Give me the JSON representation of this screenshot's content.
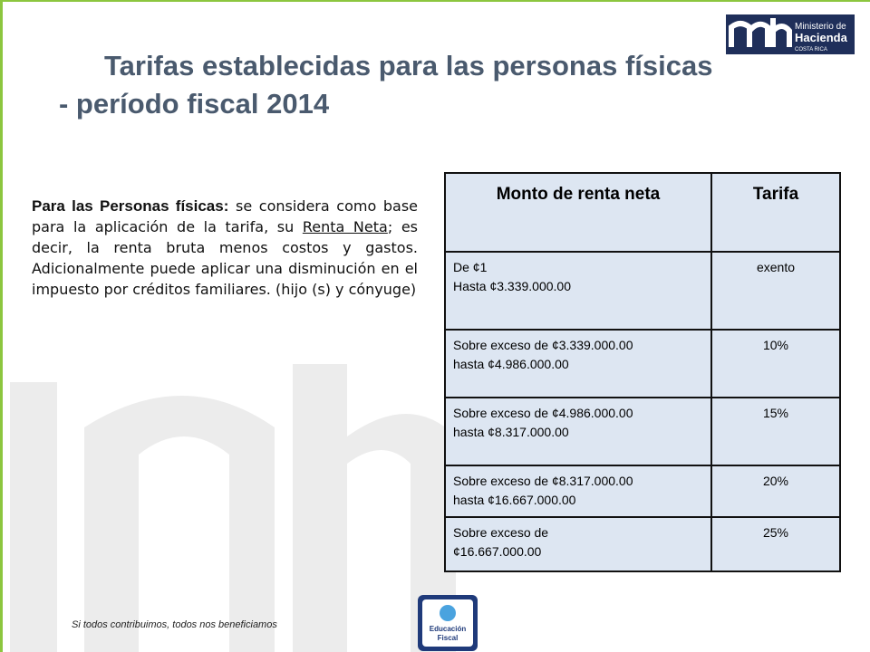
{
  "header": {
    "title": "Tarifas establecidas para las personas físicas - período fiscal 2014",
    "logo": {
      "line1": "Ministerio de",
      "line2": "Hacienda",
      "line3": "COSTA RICA"
    }
  },
  "intro": {
    "lead": "Para las Personas físicas:",
    "text1": " se considera como base para la aplicación de la tarifa, su ",
    "underlined": "Renta Neta",
    "text2": "; es decir, la renta bruta menos costos y gastos. Adicionalmente puede aplicar una disminución en el impuesto por créditos familiares. (hijo (s) y cónyuge)"
  },
  "table": {
    "headers": [
      "Monto de renta neta",
      "Tarifa"
    ],
    "rows": [
      [
        [
          "De ¢1",
          "Hasta ¢3.339.000.00"
        ],
        "exento"
      ],
      [
        [
          "Sobre exceso de ¢3.339.000.00",
          "hasta ¢4.986.000.00"
        ],
        "10%"
      ],
      [
        [
          "Sobre exceso de ¢4.986.000.00",
          "hasta ¢8.317.000.00"
        ],
        "15%"
      ],
      [
        [
          "Sobre exceso de ¢8.317.000.00",
          "hasta ¢16.667.000.00"
        ],
        "20%"
      ],
      [
        [
          "Sobre exceso de",
          "¢16.667.000.00"
        ],
        "25%"
      ]
    ]
  },
  "footer": {
    "slogan": "Si todos contribuimos, todos nos beneficiamos",
    "badge": [
      "Educación",
      "Fiscal"
    ]
  }
}
